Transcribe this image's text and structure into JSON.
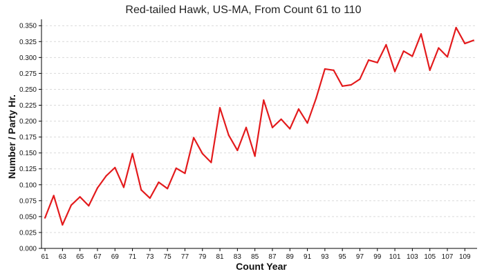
{
  "chart_data": {
    "type": "line",
    "title": "Red-tailed Hawk, US-MA,  From Count 61 to 110",
    "xlabel": "Count Year",
    "ylabel": "Number / Party Hr.",
    "xlim": [
      60.6,
      110.4
    ],
    "ylim": [
      0,
      0.36
    ],
    "xticks": [
      "61",
      "63",
      "65",
      "67",
      "69",
      "71",
      "73",
      "75",
      "77",
      "79",
      "81",
      "83",
      "85",
      "87",
      "89",
      "91",
      "93",
      "95",
      "97",
      "99",
      "101",
      "103",
      "105",
      "107",
      "109"
    ],
    "yticks": [
      "0.000",
      "0.025",
      "0.050",
      "0.075",
      "0.100",
      "0.125",
      "0.150",
      "0.175",
      "0.200",
      "0.225",
      "0.250",
      "0.275",
      "0.300",
      "0.325",
      "0.350"
    ],
    "grid": true,
    "series": [
      {
        "color": "#e31a1c",
        "x": [
          61,
          62,
          63,
          64,
          65,
          66,
          67,
          68,
          69,
          70,
          71,
          72,
          73,
          74,
          75,
          76,
          77,
          78,
          79,
          80,
          81,
          82,
          83,
          84,
          85,
          86,
          87,
          88,
          89,
          90,
          91,
          92,
          93,
          94,
          95,
          96,
          97,
          98,
          99,
          100,
          101,
          102,
          103,
          104,
          105,
          106,
          107,
          108,
          109,
          110
        ],
        "values": [
          0.048,
          0.083,
          0.037,
          0.068,
          0.081,
          0.067,
          0.095,
          0.114,
          0.127,
          0.096,
          0.149,
          0.092,
          0.079,
          0.104,
          0.094,
          0.126,
          0.118,
          0.174,
          0.149,
          0.135,
          0.221,
          0.178,
          0.154,
          0.19,
          0.145,
          0.233,
          0.19,
          0.203,
          0.188,
          0.219,
          0.197,
          0.236,
          0.282,
          0.28,
          0.255,
          0.257,
          0.266,
          0.296,
          0.292,
          0.32,
          0.278,
          0.31,
          0.302,
          0.337,
          0.28,
          0.315,
          0.301,
          0.347,
          0.322,
          0.327
        ]
      }
    ]
  }
}
